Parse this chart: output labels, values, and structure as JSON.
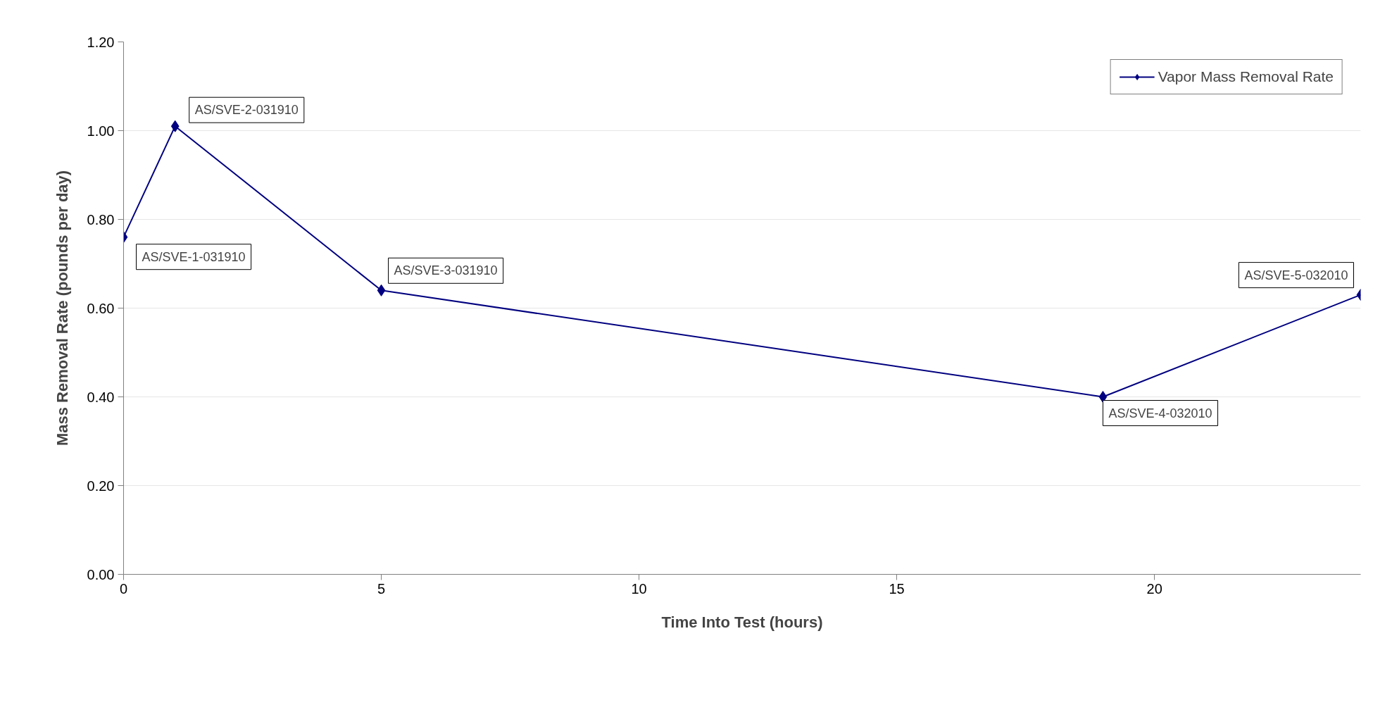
{
  "chart_data": {
    "type": "line",
    "xlabel": "Time Into Test (hours)",
    "ylabel": "Mass Removal Rate (pounds per day)",
    "x": [
      0,
      1,
      5,
      19,
      24
    ],
    "series": [
      {
        "name": "Vapor Mass Removal Rate",
        "color": "#000080",
        "values": [
          0.76,
          1.01,
          0.64,
          0.4,
          0.63
        ]
      }
    ],
    "xlim": [
      0,
      24
    ],
    "xticks": [
      0,
      5,
      10,
      15,
      20
    ],
    "ylim": [
      0,
      1.2
    ],
    "yticks": [
      {
        "value": 0,
        "label": "0.00"
      },
      {
        "value": 0.2,
        "label": "0.20"
      },
      {
        "value": 0.4,
        "label": "0.40"
      },
      {
        "value": 0.6,
        "label": "0.60"
      },
      {
        "value": 0.8,
        "label": "0.80"
      },
      {
        "value": 1.0,
        "label": "1.00"
      },
      {
        "value": 1.2,
        "label": "1.20"
      }
    ],
    "grid": "y",
    "legend": "top right",
    "marker": "diamond",
    "line_style": "solid",
    "annotations": [
      {
        "text": "AS/SVE-1-031910",
        "x": 0,
        "y": 0.76
      },
      {
        "text": "AS/SVE-2-031910",
        "x": 1,
        "y": 1.01
      },
      {
        "text": "AS/SVE-3-031910",
        "x": 5,
        "y": 0.64
      },
      {
        "text": "AS/SVE-4-032010",
        "x": 19,
        "y": 0.4
      },
      {
        "text": "AS/SVE-5-032010",
        "x": 24,
        "y": 0.63
      }
    ]
  }
}
